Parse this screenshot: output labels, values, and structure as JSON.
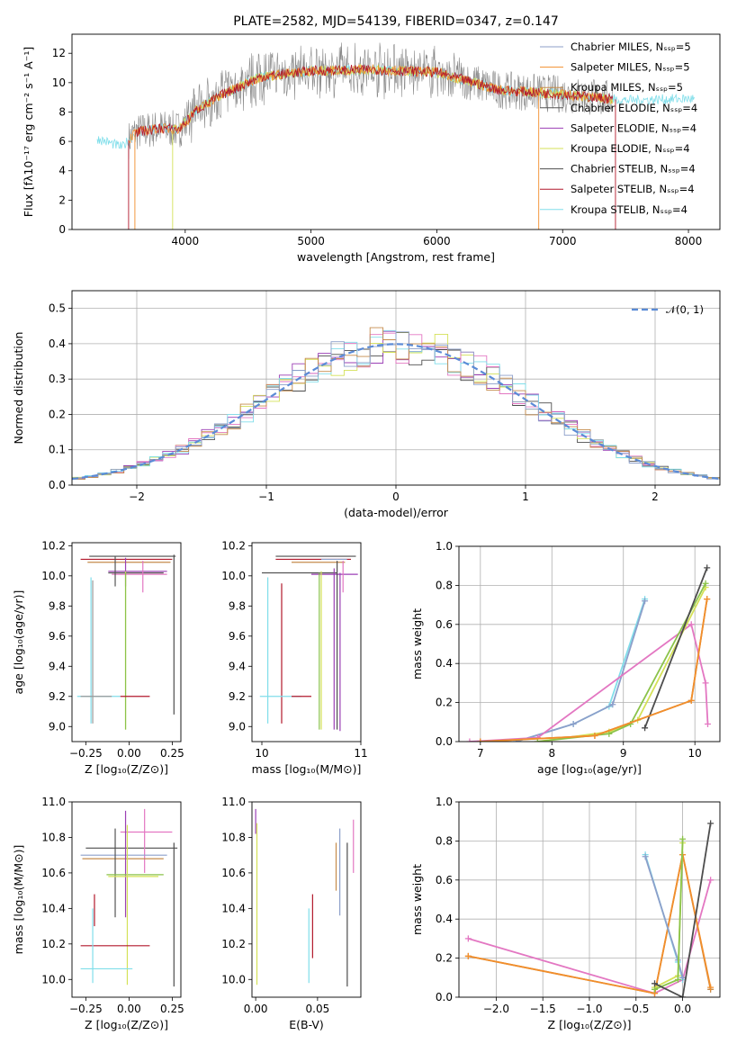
{
  "figure": {
    "title": "PLATE=2582, MJD=54139, FIBERID=0347, z=0.147"
  },
  "colors": {
    "Chabrier MILES": "#8c9fca",
    "Salpeter MILES": "#f28e2b",
    "Kroupa MILES": "#c58b4b",
    "Chabrier ELODIE": "#555555",
    "Salpeter ELODIE": "#9b3fb5",
    "Kroupa ELODIE": "#d4e157",
    "Chabrier STELIB": "#4d4d4d",
    "Salpeter STELIB": "#b2182b",
    "Kroupa STELIB": "#80deea",
    "pink": "#e377c2",
    "green": "#8bc34a",
    "gray": "#999999"
  },
  "chart_data": [
    {
      "id": "spectrum",
      "type": "line",
      "xlabel": "wavelength [Angstrom, rest frame]",
      "ylabel": "Flux [fλ10⁻¹⁷ erg cm⁻² s⁻¹ A⁻¹]",
      "xlim": [
        3100,
        8250
      ],
      "ylim": [
        0,
        13.3
      ],
      "xticks": [
        4000,
        5000,
        6000,
        7000,
        8000
      ],
      "yticks": [
        0,
        2,
        4,
        6,
        8,
        10,
        12
      ],
      "legend_position": "right",
      "legend": [
        "Chabrier MILES, Nₛₛₚ=5",
        "Salpeter MILES, Nₛₛₚ=5",
        "Kroupa MILES, Nₛₛₚ=5",
        "Chabrier ELODIE, Nₛₛₚ=4",
        "Salpeter ELODIE, Nₛₛₚ=4",
        "Kroupa ELODIE, Nₛₛₚ=4",
        "Chabrier STELIB, Nₛₛₚ=4",
        "Salpeter STELIB, Nₛₛₚ=4",
        "Kroupa STELIB, Nₛₛₚ=4"
      ],
      "legend_series": [
        "Chabrier MILES",
        "Salpeter MILES",
        "Kroupa MILES",
        "Chabrier ELODIE",
        "Salpeter ELODIE",
        "Kroupa ELODIE",
        "Chabrier STELIB",
        "Salpeter STELIB",
        "Kroupa STELIB"
      ],
      "continuum": [
        [
          3300,
          6.2
        ],
        [
          3500,
          5.6
        ],
        [
          3600,
          6.6
        ],
        [
          3800,
          6.9
        ],
        [
          3950,
          6.8
        ],
        [
          4100,
          8.2
        ],
        [
          4300,
          9.2
        ],
        [
          4600,
          10.4
        ],
        [
          5000,
          10.8
        ],
        [
          5500,
          10.9
        ],
        [
          6000,
          10.7
        ],
        [
          6500,
          9.5
        ],
        [
          7000,
          9.2
        ],
        [
          7500,
          8.8
        ],
        [
          8000,
          8.9
        ]
      ]
    },
    {
      "id": "residuals",
      "type": "histogram",
      "xlabel": "(data-model)/error",
      "ylabel": "Normed distribution",
      "xlim": [
        -2.5,
        2.5
      ],
      "ylim": [
        0,
        0.55
      ],
      "xticks": [
        -2,
        -1,
        0,
        1,
        2
      ],
      "yticks": [
        0.0,
        0.1,
        0.2,
        0.3,
        0.4,
        0.5
      ],
      "grid": true,
      "legend": "𝒩(0, 1)",
      "legend_position": "top-right",
      "bin_width": 0.1
    },
    {
      "id": "age-vs-Z",
      "type": "scatter",
      "xlabel": "Z [log₁₀(Z/Z⊙)]",
      "ylabel": "age  [log₁₀(age/yr)]",
      "xlim": [
        -0.33,
        0.3
      ],
      "ylim": [
        8.9,
        10.22
      ],
      "xticks": [
        -0.25,
        0.0,
        0.25
      ],
      "yticks": [
        9.0,
        9.2,
        9.4,
        9.6,
        9.8,
        10.0,
        10.2
      ],
      "segments": [
        {
          "c": "Chabrier STELIB",
          "x1": -0.23,
          "x2": 0.27,
          "y1": 10.13,
          "y2": 10.13
        },
        {
          "c": "Chabrier STELIB",
          "x1": 0.26,
          "x2": 0.26,
          "y1": 9.08,
          "y2": 10.14
        },
        {
          "c": "Salpeter STELIB",
          "x1": -0.28,
          "x2": 0.25,
          "y1": 10.11,
          "y2": 10.11
        },
        {
          "c": "Kroupa MILES",
          "x1": -0.24,
          "x2": 0.24,
          "y1": 10.09,
          "y2": 10.09
        },
        {
          "c": "Chabrier ELODIE",
          "x1": -0.12,
          "x2": 0.2,
          "y1": 10.02,
          "y2": 10.02
        },
        {
          "c": "Salpeter ELODIE",
          "x1": -0.12,
          "x2": 0.22,
          "y1": 10.03,
          "y2": 10.03
        },
        {
          "c": "pink",
          "x1": -0.1,
          "x2": 0.22,
          "y1": 10.01,
          "y2": 10.01
        },
        {
          "c": "pink",
          "x1": 0.08,
          "x2": 0.08,
          "y1": 9.89,
          "y2": 10.1
        },
        {
          "c": "Salpeter ELODIE",
          "x1": -0.02,
          "x2": -0.02,
          "y1": 9.93,
          "y2": 10.12
        },
        {
          "c": "Chabrier ELODIE",
          "x1": -0.08,
          "x2": -0.08,
          "y1": 9.93,
          "y2": 10.13
        },
        {
          "c": "Kroupa ELODIE",
          "x1": -0.02,
          "x2": -0.02,
          "y1": 8.98,
          "y2": 10.03
        },
        {
          "c": "green",
          "x1": -0.02,
          "x2": -0.02,
          "y1": 8.98,
          "y2": 10.02
        },
        {
          "c": "Kroupa STELIB",
          "x1": -0.22,
          "x2": -0.22,
          "y1": 9.02,
          "y2": 9.99
        },
        {
          "c": "gray",
          "x1": -0.21,
          "x2": -0.21,
          "y1": 9.02,
          "y2": 9.97
        },
        {
          "c": "Kroupa STELIB",
          "x1": -0.3,
          "x2": -0.05,
          "y1": 9.2,
          "y2": 9.2
        },
        {
          "c": "gray",
          "x1": -0.28,
          "x2": -0.1,
          "y1": 9.2,
          "y2": 9.2
        },
        {
          "c": "Salpeter STELIB",
          "x1": -0.05,
          "x2": 0.12,
          "y1": 9.2,
          "y2": 9.2
        }
      ]
    },
    {
      "id": "age-vs-mass",
      "type": "scatter",
      "xlabel": "mass [log₁₀(M/M⊙)]",
      "xlim": [
        9.9,
        11.0
      ],
      "ylim": [
        8.9,
        10.22
      ],
      "xticks": [
        10,
        11
      ],
      "yticks": [
        9.0,
        9.2,
        9.4,
        9.6,
        9.8,
        10.0,
        10.2
      ],
      "segments": [
        {
          "c": "Chabrier STELIB",
          "x1": 10.14,
          "x2": 10.95,
          "y1": 10.13,
          "y2": 10.13
        },
        {
          "c": "Salpeter STELIB",
          "x1": 10.14,
          "x2": 10.9,
          "y1": 10.11,
          "y2": 10.11
        },
        {
          "c": "Kroupa MILES",
          "x1": 10.3,
          "x2": 10.84,
          "y1": 10.09,
          "y2": 10.09
        },
        {
          "c": "Chabrier MILES",
          "x1": 10.6,
          "x2": 10.86,
          "y1": 10.11,
          "y2": 10.11
        },
        {
          "c": "Chabrier ELODIE",
          "x1": 10.0,
          "x2": 10.76,
          "y1": 10.02,
          "y2": 10.02
        },
        {
          "c": "Salpeter ELODIE",
          "x1": 10.5,
          "x2": 10.97,
          "y1": 10.01,
          "y2": 10.01
        },
        {
          "c": "pink",
          "x1": 10.82,
          "x2": 10.82,
          "y1": 9.89,
          "y2": 10.1
        },
        {
          "c": "Salpeter ELODIE",
          "x1": 10.73,
          "x2": 10.73,
          "y1": 8.98,
          "y2": 10.05
        },
        {
          "c": "Chabrier STELIB",
          "x1": 10.76,
          "x2": 10.76,
          "y1": 8.98,
          "y2": 10.1
        },
        {
          "c": "Salpeter ELODIE",
          "x1": 10.79,
          "x2": 10.79,
          "y1": 8.97,
          "y2": 10.02
        },
        {
          "c": "Kroupa ELODIE",
          "x1": 10.6,
          "x2": 10.6,
          "y1": 8.98,
          "y2": 10.03
        },
        {
          "c": "green",
          "x1": 10.58,
          "x2": 10.58,
          "y1": 8.98,
          "y2": 10.02
        },
        {
          "c": "Kroupa STELIB",
          "x1": 10.06,
          "x2": 10.06,
          "y1": 9.02,
          "y2": 9.99
        },
        {
          "c": "Salpeter STELIB",
          "x1": 10.2,
          "x2": 10.2,
          "y1": 9.02,
          "y2": 9.95
        },
        {
          "c": "Kroupa STELIB",
          "x1": 9.98,
          "x2": 10.4,
          "y1": 9.2,
          "y2": 9.2
        },
        {
          "c": "Salpeter STELIB",
          "x1": 10.3,
          "x2": 10.5,
          "y1": 9.2,
          "y2": 9.2
        }
      ]
    },
    {
      "id": "massweight-vs-age",
      "type": "line",
      "xlabel": "age  [log₁₀(age/yr)]",
      "ylabel": "mass weight",
      "xlim": [
        6.7,
        10.35
      ],
      "ylim": [
        0,
        1.0
      ],
      "xticks": [
        7,
        8,
        9,
        10
      ],
      "yticks": [
        0.0,
        0.2,
        0.4,
        0.6,
        0.8,
        1.0
      ],
      "grid": true,
      "series": [
        {
          "c": "Kroupa STELIB",
          "x": [
            7.5,
            8.3,
            8.8,
            9.3
          ],
          "y": [
            0.0,
            0.09,
            0.18,
            0.73
          ]
        },
        {
          "c": "Chabrier MILES",
          "x": [
            7.5,
            8.3,
            8.85,
            9.3
          ],
          "y": [
            0.0,
            0.09,
            0.19,
            0.72
          ]
        },
        {
          "c": "pink",
          "x": [
            6.85,
            7.8,
            9.95,
            10.15,
            10.18
          ],
          "y": [
            0.0,
            0.02,
            0.6,
            0.3,
            0.09
          ]
        },
        {
          "c": "Kroupa ELODIE",
          "x": [
            7.8,
            8.8,
            9.2,
            10.15
          ],
          "y": [
            0.0,
            0.05,
            0.11,
            0.79
          ]
        },
        {
          "c": "green",
          "x": [
            7.8,
            8.8,
            9.1,
            10.15
          ],
          "y": [
            0.0,
            0.04,
            0.09,
            0.81
          ]
        },
        {
          "c": "Chabrier STELIB",
          "x": [
            9.3,
            10.17
          ],
          "y": [
            0.07,
            0.89
          ]
        },
        {
          "c": "Kroupa MILES",
          "x": [
            7.0,
            8.6,
            9.95,
            10.17
          ],
          "y": [
            0.0,
            0.03,
            0.21,
            0.73
          ]
        },
        {
          "c": "Salpeter MILES",
          "x": [
            7.0,
            8.6,
            9.95,
            10.17
          ],
          "y": [
            0.0,
            0.03,
            0.21,
            0.73
          ]
        }
      ]
    },
    {
      "id": "mass-vs-Z",
      "type": "scatter",
      "xlabel": "Z [log₁₀(Z/Z⊙)]",
      "ylabel": "mass [log₁₀(M/M⊙)]",
      "xlim": [
        -0.33,
        0.3
      ],
      "ylim": [
        9.9,
        11.0
      ],
      "xticks": [
        -0.25,
        0.0,
        0.25
      ],
      "yticks": [
        10.0,
        10.2,
        10.4,
        10.6,
        10.8,
        11.0
      ],
      "segments": [
        {
          "c": "Chabrier STELIB",
          "x1": -0.25,
          "x2": 0.28,
          "y1": 10.74,
          "y2": 10.74
        },
        {
          "c": "Chabrier STELIB",
          "x1": 0.26,
          "x2": 0.26,
          "y1": 9.96,
          "y2": 10.77
        },
        {
          "c": "pink",
          "x1": -0.05,
          "x2": 0.25,
          "y1": 10.83,
          "y2": 10.83
        },
        {
          "c": "pink",
          "x1": 0.09,
          "x2": 0.09,
          "y1": 10.6,
          "y2": 10.96
        },
        {
          "c": "Chabrier MILES",
          "x1": -0.28,
          "x2": 0.22,
          "y1": 10.7,
          "y2": 10.7
        },
        {
          "c": "Kroupa MILES",
          "x1": -0.27,
          "x2": 0.2,
          "y1": 10.68,
          "y2": 10.68
        },
        {
          "c": "Salpeter ELODIE",
          "x1": -0.02,
          "x2": -0.02,
          "y1": 10.35,
          "y2": 10.95
        },
        {
          "c": "Chabrier ELODIE",
          "x1": -0.08,
          "x2": -0.08,
          "y1": 10.35,
          "y2": 10.85
        },
        {
          "c": "green",
          "x1": -0.13,
          "x2": 0.2,
          "y1": 10.59,
          "y2": 10.59
        },
        {
          "c": "Kroupa ELODIE",
          "x1": -0.12,
          "x2": 0.17,
          "y1": 10.58,
          "y2": 10.58
        },
        {
          "c": "Kroupa ELODIE",
          "x1": -0.01,
          "x2": -0.01,
          "y1": 9.97,
          "y2": 10.87
        },
        {
          "c": "Salpeter STELIB",
          "x1": -0.2,
          "x2": -0.2,
          "y1": 10.3,
          "y2": 10.48
        },
        {
          "c": "Salpeter STELIB",
          "x1": -0.28,
          "x2": 0.12,
          "y1": 10.19,
          "y2": 10.19
        },
        {
          "c": "Kroupa STELIB",
          "x1": -0.21,
          "x2": -0.21,
          "y1": 9.98,
          "y2": 10.4
        },
        {
          "c": "Kroupa STELIB",
          "x1": -0.28,
          "x2": 0.02,
          "y1": 10.06,
          "y2": 10.06
        }
      ]
    },
    {
      "id": "mass-vs-EBV",
      "type": "scatter",
      "xlabel": "E(B-V)",
      "xlim": [
        -0.003,
        0.085
      ],
      "ylim": [
        9.9,
        11.0
      ],
      "xticks": [
        0.0,
        0.05
      ],
      "yticks": [
        10.0,
        10.2,
        10.4,
        10.6,
        10.8,
        11.0
      ],
      "segments": [
        {
          "c": "Salpeter ELODIE",
          "x1": 0.0,
          "x2": 0.0,
          "y1": 10.82,
          "y2": 10.96
        },
        {
          "c": "Kroupa ELODIE",
          "x1": 0.001,
          "x2": 0.001,
          "y1": 9.97,
          "y2": 10.88
        },
        {
          "c": "Kroupa STELIB",
          "x1": 0.043,
          "x2": 0.043,
          "y1": 9.98,
          "y2": 10.4
        },
        {
          "c": "Salpeter STELIB",
          "x1": 0.046,
          "x2": 0.046,
          "y1": 10.12,
          "y2": 10.48
        },
        {
          "c": "Kroupa MILES",
          "x1": 0.065,
          "x2": 0.065,
          "y1": 10.5,
          "y2": 10.77
        },
        {
          "c": "Chabrier MILES",
          "x1": 0.068,
          "x2": 0.068,
          "y1": 10.36,
          "y2": 10.85
        },
        {
          "c": "Chabrier STELIB",
          "x1": 0.074,
          "x2": 0.074,
          "y1": 9.96,
          "y2": 10.77
        },
        {
          "c": "pink",
          "x1": 0.079,
          "x2": 0.079,
          "y1": 10.6,
          "y2": 10.9
        }
      ]
    },
    {
      "id": "massweight-vs-Z",
      "type": "line",
      "xlabel": "Z [log₁₀(Z/Z⊙)]",
      "ylabel": "mass weight",
      "xlim": [
        -2.4,
        0.4
      ],
      "ylim": [
        0,
        1.0
      ],
      "xticks": [
        -2.0,
        -1.5,
        -1.0,
        -0.5,
        0.0
      ],
      "yticks": [
        0.0,
        0.2,
        0.4,
        0.6,
        0.8,
        1.0
      ],
      "grid": true,
      "series": [
        {
          "c": "pink",
          "x": [
            -2.3,
            -0.3,
            0.0,
            0.3
          ],
          "y": [
            0.3,
            0.02,
            0.09,
            0.6
          ]
        },
        {
          "c": "Kroupa MILES",
          "x": [
            -2.3,
            -0.3,
            0.0,
            0.3
          ],
          "y": [
            0.21,
            0.02,
            0.73,
            0.04
          ]
        },
        {
          "c": "Salpeter MILES",
          "x": [
            -2.3,
            -0.3,
            0.0,
            0.3
          ],
          "y": [
            0.21,
            0.02,
            0.73,
            0.05
          ]
        },
        {
          "c": "Kroupa STELIB",
          "x": [
            -0.4,
            -0.05,
            0.0
          ],
          "y": [
            0.73,
            0.18,
            0.09
          ]
        },
        {
          "c": "Chabrier MILES",
          "x": [
            -0.4,
            -0.05,
            0.0
          ],
          "y": [
            0.72,
            0.19,
            0.1
          ]
        },
        {
          "c": "Kroupa ELODIE",
          "x": [
            -0.3,
            -0.05,
            0.0
          ],
          "y": [
            0.05,
            0.11,
            0.79
          ]
        },
        {
          "c": "green",
          "x": [
            -0.3,
            -0.05,
            0.0
          ],
          "y": [
            0.04,
            0.09,
            0.81
          ]
        },
        {
          "c": "Chabrier STELIB",
          "x": [
            -0.3,
            0.0,
            0.3
          ],
          "y": [
            0.07,
            0.0,
            0.89
          ]
        }
      ]
    }
  ]
}
